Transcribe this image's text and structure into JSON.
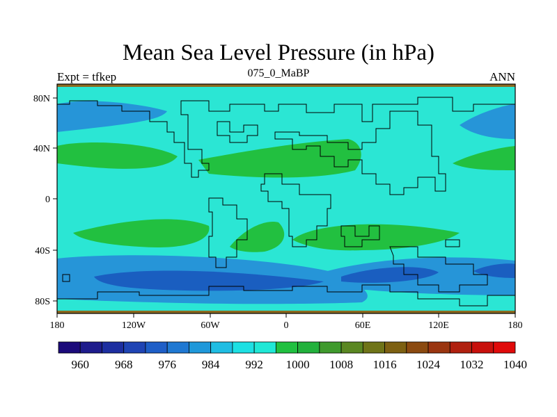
{
  "title": "Mean Sea Level Pressure (in hPa)",
  "subtitle_left": "Expt = tfkep",
  "subtitle_center": "075_0_MaBP",
  "subtitle_right": "ANN",
  "x_ticks": [
    "180",
    "120W",
    "60W",
    "0",
    "60E",
    "120E",
    "180"
  ],
  "y_ticks": [
    "80N",
    "40N",
    "0",
    "40S",
    "80S"
  ],
  "colorbar": {
    "colors": [
      "#1b0a7a",
      "#1e1c8c",
      "#1d2ea0",
      "#1f44b4",
      "#1e5ec7",
      "#1f78d2",
      "#1f98da",
      "#1fbde3",
      "#1de0e3",
      "#1fe8d6",
      "#20c040",
      "#22b13c",
      "#3f9a2d",
      "#5a8722",
      "#6f7418",
      "#7d6012",
      "#8b4a10",
      "#9a3510",
      "#b0200f",
      "#c8100c",
      "#e00a0a"
    ],
    "labels": [
      "960",
      "968",
      "976",
      "984",
      "992",
      "1000",
      "1008",
      "1016",
      "1024",
      "1032",
      "1040"
    ]
  },
  "colors": {
    "background_field": "#2be6d4",
    "high_band": "#22c040",
    "low_mid": "#2695d8",
    "low_deep": "#1a5ec0",
    "coast": "#000000"
  }
}
